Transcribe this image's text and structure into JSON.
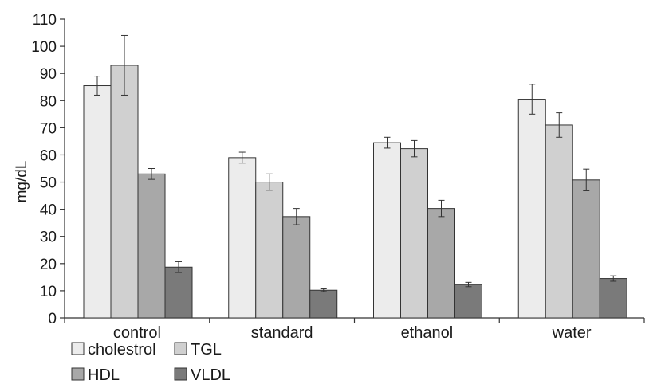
{
  "chart_data": {
    "type": "bar",
    "title": "",
    "xlabel": "",
    "ylabel": "mg/dL",
    "ylim": [
      0,
      110
    ],
    "yticks": [
      0,
      10,
      20,
      30,
      40,
      50,
      60,
      70,
      80,
      90,
      100,
      110
    ],
    "grid": false,
    "legend_position": "bottom-left",
    "categories": [
      "control",
      "standard",
      "ethanol",
      "water"
    ],
    "series": [
      {
        "name": "cholestrol",
        "color": "#ececec",
        "values": [
          85.5,
          59,
          64.5,
          80.5
        ],
        "errors": [
          3.5,
          2,
          2,
          5.5
        ]
      },
      {
        "name": "TGL",
        "color": "#d0d0d0",
        "values": [
          93,
          50,
          62.3,
          71
        ],
        "errors": [
          11,
          3,
          3,
          4.5
        ]
      },
      {
        "name": "HDL",
        "color": "#a8a8a8",
        "values": [
          53,
          37.3,
          40.3,
          50.8
        ],
        "errors": [
          2,
          3,
          3,
          4
        ]
      },
      {
        "name": "VLDL",
        "color": "#7a7a7a",
        "values": [
          18.7,
          10.2,
          12.3,
          14.5
        ],
        "errors": [
          2,
          0.5,
          0.8,
          1
        ]
      }
    ]
  }
}
